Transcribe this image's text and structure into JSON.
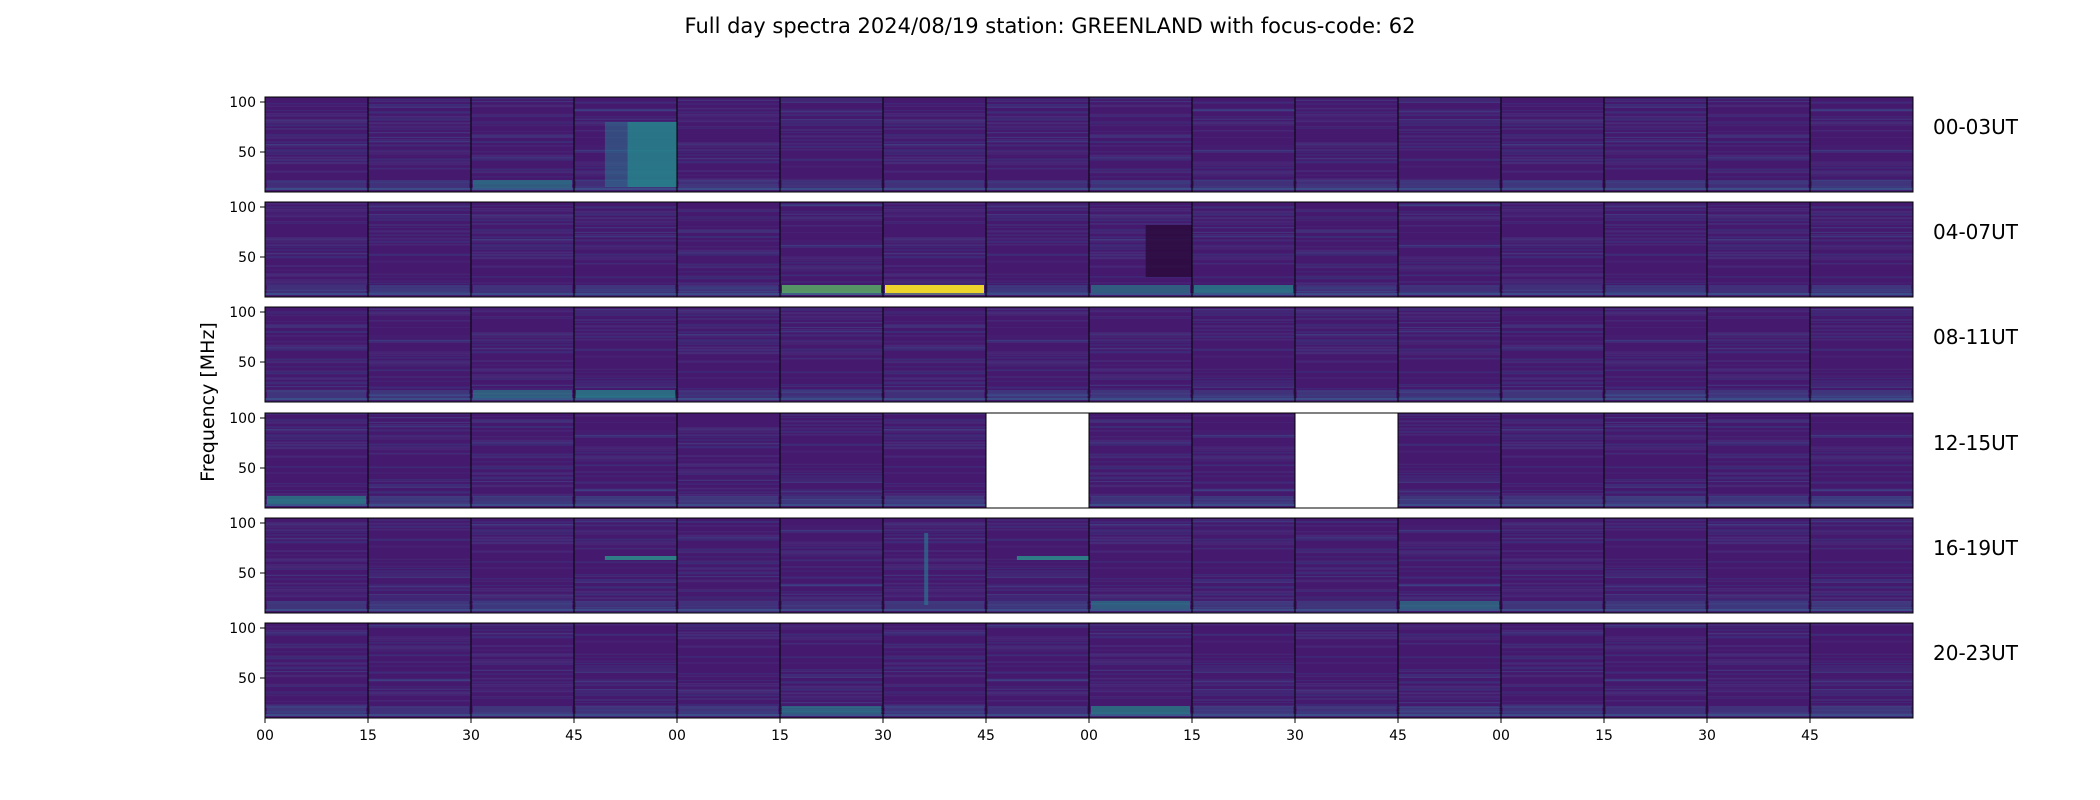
{
  "chart_data": {
    "type": "heatmap",
    "title": "Full day spectra 2024/08/19 station: GREENLAND with focus-code: 62",
    "ylabel": "Frequency [MHz]",
    "ylim": [
      10,
      105
    ],
    "y_ticks": [
      "100",
      "50"
    ],
    "x_ticks": [
      "00",
      "15",
      "30",
      "45",
      "00",
      "15",
      "30",
      "45",
      "00",
      "15",
      "30",
      "45",
      "00",
      "15",
      "30",
      "45"
    ],
    "rows": [
      {
        "label": "00-03UT",
        "panels": [
          {
            "status": "data",
            "low_band": 0.15,
            "highlight": null
          },
          {
            "status": "data",
            "low_band": 0.25,
            "highlight": null
          },
          {
            "status": "data",
            "low_band": 0.45,
            "highlight": null
          },
          {
            "status": "data",
            "low_band": 0.15,
            "highlight": "broadband-burst"
          },
          {
            "status": "data",
            "low_band": 0.2,
            "highlight": null
          },
          {
            "status": "data",
            "low_band": 0.2,
            "highlight": null
          },
          {
            "status": "data",
            "low_band": 0.25,
            "highlight": null
          },
          {
            "status": "data",
            "low_band": 0.15,
            "highlight": null
          },
          {
            "status": "data",
            "low_band": 0.2,
            "highlight": null
          },
          {
            "status": "data",
            "low_band": 0.2,
            "highlight": null
          },
          {
            "status": "data",
            "low_band": 0.15,
            "highlight": null
          },
          {
            "status": "data",
            "low_band": 0.35,
            "highlight": null
          },
          {
            "status": "data",
            "low_band": 0.4,
            "highlight": null
          },
          {
            "status": "data",
            "low_band": 0.3,
            "highlight": null
          },
          {
            "status": "data",
            "low_band": 0.15,
            "highlight": null
          },
          {
            "status": "data",
            "low_band": 0.35,
            "highlight": null
          }
        ]
      },
      {
        "label": "04-07UT",
        "panels": [
          {
            "status": "data",
            "low_band": 0.2,
            "highlight": null
          },
          {
            "status": "data",
            "low_band": 0.25,
            "highlight": null
          },
          {
            "status": "data",
            "low_band": 0.25,
            "highlight": null
          },
          {
            "status": "data",
            "low_band": 0.35,
            "highlight": null
          },
          {
            "status": "data",
            "low_band": 0.25,
            "highlight": null
          },
          {
            "status": "data",
            "low_band": 0.65,
            "highlight": null
          },
          {
            "status": "data",
            "low_band": 0.95,
            "highlight": null
          },
          {
            "status": "data",
            "low_band": 0.2,
            "highlight": null
          },
          {
            "status": "data",
            "low_band": 0.45,
            "highlight": "dark-block"
          },
          {
            "status": "data",
            "low_band": 0.6,
            "highlight": null
          },
          {
            "status": "data",
            "low_band": 0.2,
            "highlight": null
          },
          {
            "status": "data",
            "low_band": 0.2,
            "highlight": null
          },
          {
            "status": "data",
            "low_band": 0.2,
            "highlight": null
          },
          {
            "status": "data",
            "low_band": 0.2,
            "highlight": null
          },
          {
            "status": "data",
            "low_band": 0.2,
            "highlight": null
          },
          {
            "status": "data",
            "low_band": 0.35,
            "highlight": null
          }
        ]
      },
      {
        "label": "08-11UT",
        "panels": [
          {
            "status": "data",
            "low_band": 0.35,
            "highlight": null
          },
          {
            "status": "data",
            "low_band": 0.3,
            "highlight": null
          },
          {
            "status": "data",
            "low_band": 0.45,
            "highlight": null
          },
          {
            "status": "data",
            "low_band": 0.6,
            "highlight": null
          },
          {
            "status": "data",
            "low_band": 0.2,
            "highlight": null
          },
          {
            "status": "data",
            "low_band": 0.2,
            "highlight": null
          },
          {
            "status": "data",
            "low_band": 0.2,
            "highlight": null
          },
          {
            "status": "data",
            "low_band": 0.35,
            "highlight": null
          },
          {
            "status": "data",
            "low_band": 0.3,
            "highlight": null
          },
          {
            "status": "data",
            "low_band": 0.25,
            "highlight": null
          },
          {
            "status": "data",
            "low_band": 0.3,
            "highlight": null
          },
          {
            "status": "data",
            "low_band": 0.25,
            "highlight": null
          },
          {
            "status": "data",
            "low_band": 0.3,
            "highlight": null
          },
          {
            "status": "data",
            "low_band": 0.3,
            "highlight": null
          },
          {
            "status": "data",
            "low_band": 0.3,
            "highlight": null
          },
          {
            "status": "data",
            "low_band": 0.35,
            "highlight": null
          }
        ]
      },
      {
        "label": "12-15UT",
        "panels": [
          {
            "status": "data",
            "low_band": 0.55,
            "highlight": null
          },
          {
            "status": "data",
            "low_band": 0.25,
            "highlight": null
          },
          {
            "status": "data",
            "low_band": 0.3,
            "highlight": null
          },
          {
            "status": "data",
            "low_band": 0.3,
            "highlight": null
          },
          {
            "status": "data",
            "low_band": 0.3,
            "highlight": null
          },
          {
            "status": "data",
            "low_band": 0.25,
            "highlight": null
          },
          {
            "status": "data",
            "low_band": 0.3,
            "highlight": null
          },
          {
            "status": "missing",
            "low_band": 0,
            "highlight": null
          },
          {
            "status": "data",
            "low_band": 0.25,
            "highlight": null
          },
          {
            "status": "data",
            "low_band": 0.25,
            "highlight": null
          },
          {
            "status": "missing",
            "low_band": 0,
            "highlight": null
          },
          {
            "status": "data",
            "low_band": 0.3,
            "highlight": null
          },
          {
            "status": "data",
            "low_band": 0.25,
            "highlight": null
          },
          {
            "status": "data",
            "low_band": 0.3,
            "highlight": null
          },
          {
            "status": "data",
            "low_band": 0.35,
            "highlight": null
          },
          {
            "status": "data",
            "low_band": 0.4,
            "highlight": null
          }
        ]
      },
      {
        "label": "16-19UT",
        "panels": [
          {
            "status": "data",
            "low_band": 0.3,
            "highlight": null
          },
          {
            "status": "data",
            "low_band": 0.35,
            "highlight": null
          },
          {
            "status": "data",
            "low_band": 0.4,
            "highlight": null
          },
          {
            "status": "data",
            "low_band": 0.25,
            "highlight": "line-65"
          },
          {
            "status": "data",
            "low_band": 0.25,
            "highlight": null
          },
          {
            "status": "data",
            "low_band": 0.25,
            "highlight": null
          },
          {
            "status": "data",
            "low_band": 0.3,
            "highlight": "vertical-burst"
          },
          {
            "status": "data",
            "low_band": 0.35,
            "highlight": "line-65"
          },
          {
            "status": "data",
            "low_band": 0.45,
            "highlight": null
          },
          {
            "status": "data",
            "low_band": 0.3,
            "highlight": null
          },
          {
            "status": "data",
            "low_band": 0.3,
            "highlight": null
          },
          {
            "status": "data",
            "low_band": 0.45,
            "highlight": null
          },
          {
            "status": "data",
            "low_band": 0.3,
            "highlight": null
          },
          {
            "status": "data",
            "low_band": 0.3,
            "highlight": null
          },
          {
            "status": "data",
            "low_band": 0.4,
            "highlight": null
          },
          {
            "status": "data",
            "low_band": 0.3,
            "highlight": null
          }
        ]
      },
      {
        "label": "20-23UT",
        "panels": [
          {
            "status": "data",
            "low_band": 0.3,
            "highlight": null
          },
          {
            "status": "data",
            "low_band": 0.25,
            "highlight": null
          },
          {
            "status": "data",
            "low_band": 0.3,
            "highlight": null
          },
          {
            "status": "data",
            "low_band": 0.25,
            "highlight": null
          },
          {
            "status": "data",
            "low_band": 0.3,
            "highlight": null
          },
          {
            "status": "data",
            "low_band": 0.45,
            "highlight": null
          },
          {
            "status": "data",
            "low_band": 0.35,
            "highlight": null
          },
          {
            "status": "data",
            "low_band": 0.25,
            "highlight": null
          },
          {
            "status": "data",
            "low_band": 0.55,
            "highlight": null
          },
          {
            "status": "data",
            "low_band": 0.35,
            "highlight": null
          },
          {
            "status": "data",
            "low_band": 0.25,
            "highlight": null
          },
          {
            "status": "data",
            "low_band": 0.35,
            "highlight": null
          },
          {
            "status": "data",
            "low_band": 0.25,
            "highlight": null
          },
          {
            "status": "data",
            "low_band": 0.25,
            "highlight": null
          },
          {
            "status": "data",
            "low_band": 0.25,
            "highlight": null
          },
          {
            "status": "data",
            "low_band": 0.3,
            "highlight": null
          }
        ]
      }
    ],
    "colormap": [
      "#440154",
      "#3b528b",
      "#21918c",
      "#5ec962",
      "#fde725"
    ]
  }
}
